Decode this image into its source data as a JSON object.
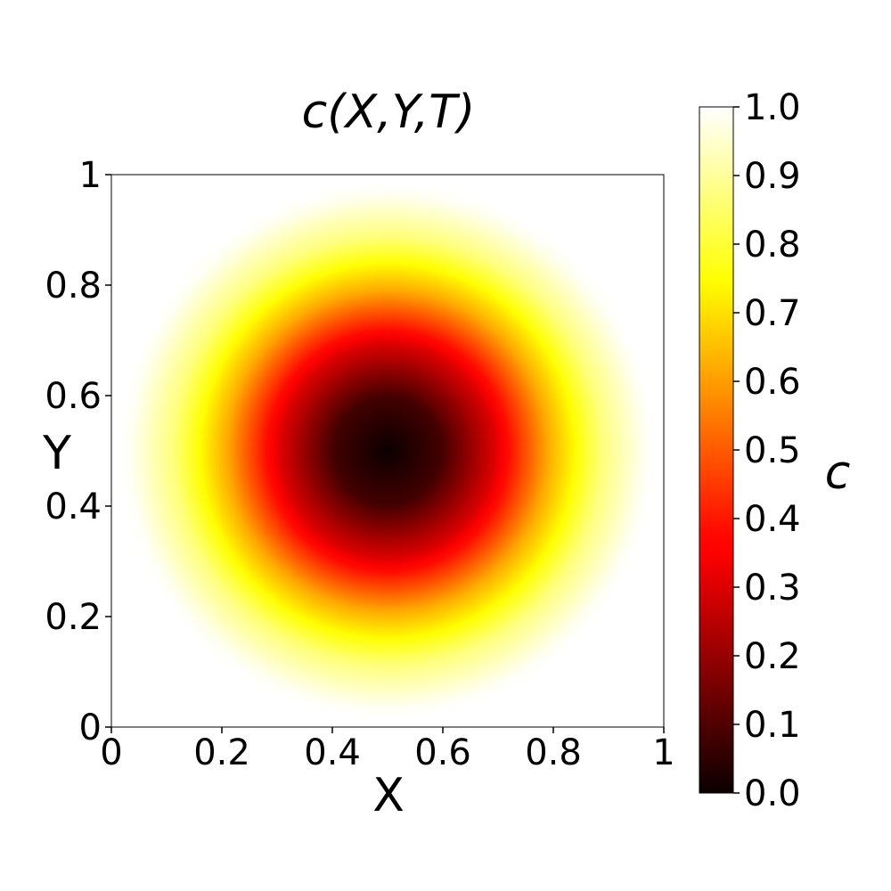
{
  "chart_data": {
    "type": "heatmap",
    "title": "c(X,Y,T)",
    "xlabel": "X",
    "ylabel": "Y",
    "colorbar_label": "c",
    "colormap": "hot",
    "xlim": [
      0,
      1
    ],
    "ylim": [
      0,
      1
    ],
    "xticks": [
      {
        "value": 0,
        "label": "0"
      },
      {
        "value": 0.2,
        "label": "0.2"
      },
      {
        "value": 0.4,
        "label": "0.4"
      },
      {
        "value": 0.6,
        "label": "0.6"
      },
      {
        "value": 0.8,
        "label": "0.8"
      },
      {
        "value": 1,
        "label": "1"
      }
    ],
    "yticks": [
      {
        "value": 0,
        "label": "0"
      },
      {
        "value": 0.2,
        "label": "0.2"
      },
      {
        "value": 0.4,
        "label": "0.4"
      },
      {
        "value": 0.6,
        "label": "0.6"
      },
      {
        "value": 0.8,
        "label": "0.8"
      },
      {
        "value": 1,
        "label": "1"
      }
    ],
    "colorbar_range": [
      0,
      1
    ],
    "colorbar_ticks": [
      {
        "value": 0.0,
        "label": "0.0"
      },
      {
        "value": 0.1,
        "label": "0.1"
      },
      {
        "value": 0.2,
        "label": "0.2"
      },
      {
        "value": 0.3,
        "label": "0.3"
      },
      {
        "value": 0.4,
        "label": "0.4"
      },
      {
        "value": 0.5,
        "label": "0.5"
      },
      {
        "value": 0.6,
        "label": "0.6"
      },
      {
        "value": 0.7,
        "label": "0.7"
      },
      {
        "value": 0.8,
        "label": "0.8"
      },
      {
        "value": 0.9,
        "label": "0.9"
      },
      {
        "value": 1.0,
        "label": "1.0"
      }
    ],
    "field": {
      "description": "radially symmetric field, minimum at center",
      "center": [
        0.5,
        0.5
      ],
      "radial_profile": [
        {
          "r": 0.0,
          "c": 0.0
        },
        {
          "r": 0.1,
          "c": 0.08
        },
        {
          "r": 0.2,
          "c": 0.3
        },
        {
          "r": 0.3,
          "c": 0.62
        },
        {
          "r": 0.4,
          "c": 0.87
        },
        {
          "r": 0.48,
          "c": 0.99
        },
        {
          "r": 0.5,
          "c": 1.0
        }
      ],
      "outside_value": 1.0
    }
  }
}
